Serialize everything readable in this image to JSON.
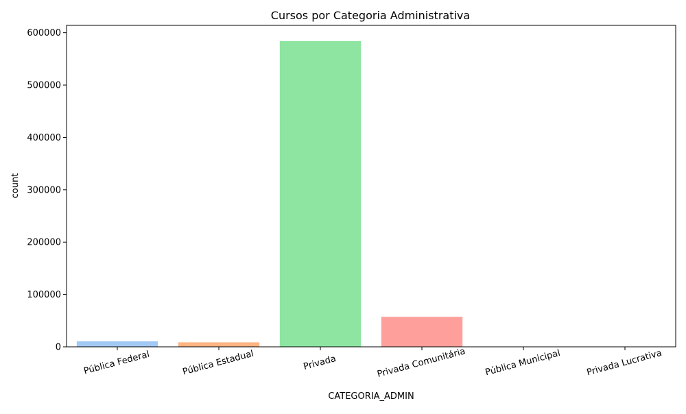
{
  "chart_data": {
    "type": "bar",
    "title": "Cursos por Categoria Administrativa",
    "xlabel": "CATEGORIA_ADMIN",
    "ylabel": "count",
    "categories": [
      "Pública Federal",
      "Pública Estadual",
      "Privada",
      "Privada Comunitária",
      "Pública Municipal",
      "Privada Lucrativa"
    ],
    "values": [
      10500,
      8600,
      584000,
      57300,
      400,
      150
    ],
    "colors": [
      "#a1c9f4",
      "#ffb482",
      "#8de5a1",
      "#ff9f9b",
      "#d0bbff",
      "#debb9b"
    ],
    "ylim": [
      0,
      614000
    ],
    "yticks": [
      0,
      100000,
      200000,
      300000,
      400000,
      500000,
      600000
    ],
    "ytick_labels": [
      "0",
      "100000",
      "200000",
      "300000",
      "400000",
      "500000",
      "600000"
    ],
    "grid": false,
    "legend": "none"
  }
}
